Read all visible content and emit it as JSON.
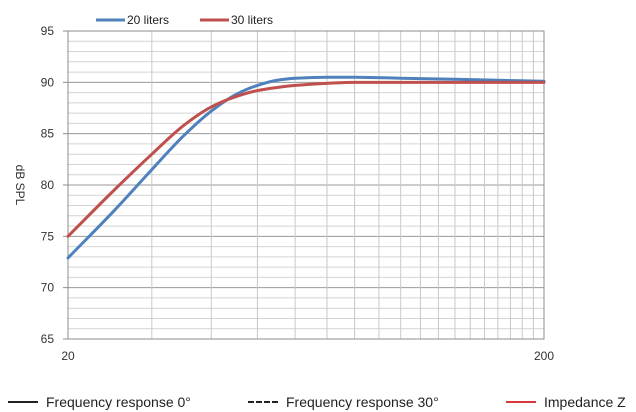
{
  "chart_data": {
    "type": "line",
    "xscale": "log",
    "xlim": [
      20,
      200
    ],
    "ylim": [
      65,
      95
    ],
    "x_tick_labels": [
      20,
      200
    ],
    "y_ticks": [
      65,
      70,
      75,
      80,
      85,
      90,
      95
    ],
    "ylabel": "dB SPL",
    "legend_position": "top-left",
    "series": [
      {
        "name": "20 liters",
        "color": "#4f81bd",
        "points": [
          [
            20,
            72.9
          ],
          [
            25,
            77.5
          ],
          [
            30,
            81.5
          ],
          [
            35,
            84.8
          ],
          [
            40,
            87.2
          ],
          [
            45,
            88.8
          ],
          [
            50,
            89.7
          ],
          [
            55,
            90.2
          ],
          [
            60,
            90.4
          ],
          [
            70,
            90.5
          ],
          [
            80,
            90.5
          ],
          [
            100,
            90.4
          ],
          [
            130,
            90.3
          ],
          [
            160,
            90.2
          ],
          [
            200,
            90.1
          ]
        ]
      },
      {
        "name": "30 liters",
        "color": "#c0504d",
        "points": [
          [
            20,
            75.0
          ],
          [
            25,
            79.5
          ],
          [
            30,
            83.0
          ],
          [
            35,
            85.8
          ],
          [
            40,
            87.6
          ],
          [
            45,
            88.6
          ],
          [
            50,
            89.2
          ],
          [
            55,
            89.5
          ],
          [
            60,
            89.7
          ],
          [
            70,
            89.9
          ],
          [
            80,
            90.0
          ],
          [
            100,
            90.0
          ],
          [
            130,
            90.0
          ],
          [
            160,
            90.0
          ],
          [
            200,
            90.0
          ]
        ]
      }
    ],
    "footer_legend": [
      {
        "label": "Frequency response 0°",
        "style": "solid",
        "color": "#222222"
      },
      {
        "label": "Frequency response 30°",
        "style": "dashed",
        "color": "#222222"
      },
      {
        "label": "Impedance Z",
        "style": "solid",
        "color": "#d9383a"
      }
    ]
  }
}
